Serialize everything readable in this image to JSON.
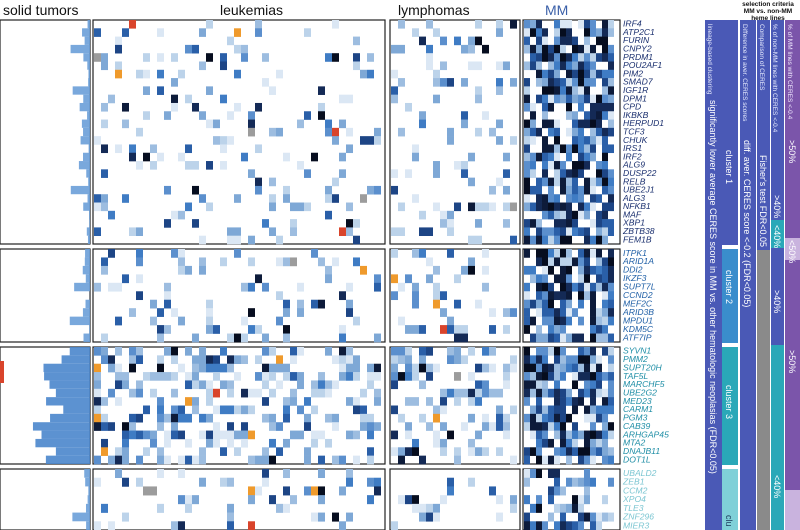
{
  "headers": {
    "solid": "solid tumors",
    "leukemias": "leukemias",
    "lymphomas": "lymphomas",
    "mm": "MM",
    "selection": "selection criteria MM vs. non-MM heme lines"
  },
  "colors": {
    "mm_header": "#3a5fa8",
    "heat_light": "#bcd3ea",
    "heat_mid": "#3f7cc4",
    "heat_dark": "#0d1b3a",
    "orange": "#ef9a2c",
    "red": "#d9442b",
    "gray": "#9c9c9c",
    "cluster1": "#4a59b6",
    "cluster2": "#3a8dcc",
    "cluster3": "#2aa8b8",
    "cluster4": "#7fd0d8",
    "fisher_gray": "#8a8a8a",
    "pct_purple": "#7b55aa",
    "pct_light": "#c9b3de"
  },
  "clusters": [
    {
      "name": "cluster 1",
      "genes": [
        "IRF4",
        "ATP2C1",
        "FURIN",
        "CNPY2",
        "PRDM1",
        "POU2AF1",
        "PIM2",
        "SMAD7",
        "IGF1R",
        "DPM1",
        "CPD",
        "IKBKB",
        "HERPUD1",
        "TCF3",
        "CHUK",
        "IRS1",
        "IRF2",
        "ALG9",
        "DUSP22",
        "RELB",
        "UBE2J1",
        "ALG3",
        "NFKB1",
        "MAF",
        "XBP1",
        "ZBTB38",
        "FEM1B"
      ]
    },
    {
      "name": "cluster 2",
      "genes": [
        "ITPK1",
        "ARID1A",
        "DDI2",
        "IKZF3",
        "SUPT7L",
        "CCND2",
        "MEF2C",
        "ARID3B",
        "MPDU1",
        "KDM5C",
        "ATF7IP"
      ]
    },
    {
      "name": "cluster 3",
      "genes": [
        "SYVN1",
        "PMM2",
        "SUPT20H",
        "TAF5L",
        "MARCHF5",
        "UBE2G2",
        "MED23",
        "CARM1",
        "PGM3",
        "CAB39",
        "ARHGAP45",
        "MTA2",
        "DNAJB11",
        "DOT1L"
      ]
    },
    {
      "name": "clu",
      "genes": [
        "UBALD2",
        "ZEB1",
        "CCM2",
        "XPO4",
        "TLE3",
        "ZNF296",
        "MIER3"
      ]
    }
  ],
  "annotations": {
    "col1_top": "lineage-based clustering",
    "col1_main": "significantly lower average CERES score in MM vs. other hematologic neoplasias (FDR<0.05)",
    "col2_top": "Difference in aver. CERES scores",
    "col2_main": "diff. aver. CERES score <-0.2 (FDR<0.05)",
    "col3_top": "Comparison of CERES",
    "col3_main": "Fisher's test FDR<0.05",
    "col4_top": "% of non-MM lines with CERES <-0.4",
    "col5_top": "% of MM lines with CERES <-0.4",
    "pct_gt40": ">40%",
    "pct_lt40": "<40%",
    "pct_gt50": ">50%",
    "pct_lt50": "<50%"
  },
  "chart_data": {
    "type": "heatmap",
    "title": "",
    "panels": [
      "solid tumors",
      "leukemias",
      "lymphomas",
      "MM"
    ],
    "rows_per_cluster": [
      27,
      11,
      14,
      7
    ],
    "encoding": "color intensity = dependency (more negative CERES score = darker blue); orange/red/gray marks shown as outliers",
    "legend": "none",
    "grid": false
  }
}
